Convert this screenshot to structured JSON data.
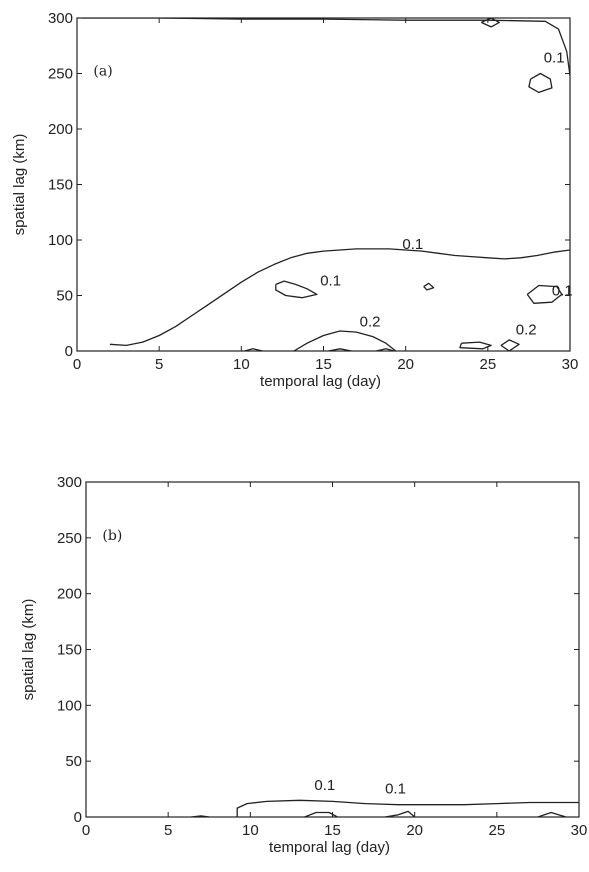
{
  "chart_data": [
    {
      "type": "contour",
      "panel_label": "(a)",
      "xlabel": "temporal lag (day)",
      "ylabel": "spatial lag (km)",
      "xlim": [
        0,
        30
      ],
      "ylim": [
        0,
        300
      ],
      "xticks": [
        0,
        5,
        10,
        15,
        20,
        25,
        30
      ],
      "yticks": [
        0,
        50,
        100,
        150,
        200,
        250,
        300
      ],
      "grid": false,
      "contours": [
        {
          "level": "0.1",
          "points": [
            [
              2,
              6
            ],
            [
              3,
              5
            ],
            [
              4,
              8
            ],
            [
              5,
              14
            ],
            [
              6,
              22
            ],
            [
              7,
              32
            ],
            [
              8,
              42
            ],
            [
              9,
              52
            ],
            [
              10,
              62
            ],
            [
              11,
              71
            ],
            [
              12,
              78
            ],
            [
              13,
              84
            ],
            [
              14,
              88
            ],
            [
              15,
              90
            ],
            [
              16,
              91
            ],
            [
              17,
              92
            ],
            [
              18,
              92
            ],
            [
              19,
              92
            ],
            [
              20,
              91
            ],
            [
              21,
              90
            ],
            [
              22,
              88
            ],
            [
              23,
              86
            ],
            [
              24,
              85
            ],
            [
              25,
              84
            ],
            [
              26,
              83
            ],
            [
              27,
              84
            ],
            [
              28,
              86
            ],
            [
              29,
              89
            ],
            [
              30,
              91
            ]
          ]
        },
        {
          "level": "",
          "points": [
            [
              13.2,
              0
            ],
            [
              14,
              7
            ],
            [
              15,
              14
            ],
            [
              16,
              18
            ],
            [
              17,
              17
            ],
            [
              18,
              13
            ],
            [
              18.8,
              7
            ],
            [
              19.4,
              0
            ]
          ]
        },
        {
          "level": "",
          "points": [
            [
              0.3,
              300
            ],
            [
              5,
              300
            ],
            [
              10,
              299
            ],
            [
              15,
              299
            ],
            [
              20,
              298
            ],
            [
              25,
              298
            ],
            [
              28.5,
              297
            ],
            [
              29.3,
              290
            ],
            [
              29.8,
              270
            ],
            [
              30,
              248
            ]
          ]
        },
        {
          "level": "",
          "points": [
            [
              12.1,
              60
            ],
            [
              12.6,
              63
            ],
            [
              13.3,
              60
            ],
            [
              14,
              56
            ],
            [
              14.6,
              51
            ],
            [
              13.7,
              48
            ],
            [
              12.7,
              50
            ],
            [
              12.1,
              55
            ],
            [
              12.1,
              60
            ]
          ]
        },
        {
          "level": "",
          "points": [
            [
              27.4,
              51
            ],
            [
              28.1,
              59
            ],
            [
              29.2,
              58
            ],
            [
              29.5,
              51
            ],
            [
              28.9,
              44
            ],
            [
              27.8,
              43
            ],
            [
              27.4,
              51
            ]
          ]
        },
        {
          "level": "",
          "points": [
            [
              27.6,
              245
            ],
            [
              28.2,
              250
            ],
            [
              28.8,
              245
            ],
            [
              28.9,
              237
            ],
            [
              28.1,
              233
            ],
            [
              27.5,
              238
            ],
            [
              27.6,
              245
            ]
          ]
        },
        {
          "level": "",
          "points": [
            [
              25.8,
              5
            ],
            [
              26.3,
              10
            ],
            [
              26.9,
              6
            ],
            [
              26.3,
              0
            ],
            [
              25.8,
              5
            ]
          ]
        },
        {
          "level": "",
          "points": [
            [
              23.4,
              7
            ],
            [
              24.5,
              8
            ],
            [
              25.2,
              5
            ],
            [
              24.7,
              2
            ],
            [
              23.3,
              3
            ],
            [
              23.4,
              7
            ]
          ]
        },
        {
          "level": "",
          "points": [
            [
              21.1,
              58
            ],
            [
              21.4,
              61
            ],
            [
              21.7,
              57
            ],
            [
              21.3,
              55
            ],
            [
              21.1,
              58
            ]
          ]
        },
        {
          "level": "",
          "points": [
            [
              24.6,
              296
            ],
            [
              25.2,
              300
            ],
            [
              25.7,
              296
            ],
            [
              25.2,
              292
            ],
            [
              24.6,
              296
            ]
          ]
        },
        {
          "level": "",
          "points": [
            [
              10.2,
              0
            ],
            [
              10.7,
              2
            ],
            [
              11.3,
              0
            ]
          ]
        },
        {
          "level": "",
          "points": [
            [
              15.3,
              0
            ],
            [
              16,
              2
            ],
            [
              16.7,
              0
            ]
          ]
        },
        {
          "level": "",
          "points": [
            [
              18.2,
              0
            ],
            [
              18.8,
              2
            ],
            [
              19.3,
              0
            ]
          ]
        }
      ],
      "annotations": [
        {
          "text": "0.1",
          "x": 28.4,
          "y": 260
        },
        {
          "text": "0.1",
          "x": 19.8,
          "y": 92
        },
        {
          "text": "0.1",
          "x": 14.8,
          "y": 59
        },
        {
          "text": "0.2",
          "x": 17.2,
          "y": 22
        },
        {
          "text": "0.1",
          "x": 28.9,
          "y": 50
        },
        {
          "text": "0.2",
          "x": 26.7,
          "y": 15
        }
      ]
    },
    {
      "type": "contour",
      "panel_label": "(b)",
      "xlabel": "temporal lag (day)",
      "ylabel": "spatial lag (km)",
      "xlim": [
        0,
        30
      ],
      "ylim": [
        0,
        300
      ],
      "xticks": [
        0,
        5,
        10,
        15,
        20,
        25,
        30
      ],
      "yticks": [
        0,
        50,
        100,
        150,
        200,
        250,
        300
      ],
      "grid": false,
      "contours": [
        {
          "level": "0.1",
          "points": [
            [
              9.2,
              0
            ],
            [
              9.2,
              8
            ],
            [
              9.8,
              12
            ],
            [
              11,
              14
            ],
            [
              13,
              15
            ],
            [
              15,
              14
            ],
            [
              17,
              12
            ],
            [
              19,
              11
            ],
            [
              21,
              11
            ],
            [
              23,
              11
            ],
            [
              25,
              12
            ],
            [
              27,
              13
            ],
            [
              29,
              13
            ],
            [
              30,
              13
            ]
          ]
        },
        {
          "level": "",
          "points": [
            [
              13.3,
              0
            ],
            [
              14,
              4
            ],
            [
              14.8,
              4
            ],
            [
              15.3,
              0
            ]
          ]
        },
        {
          "level": "",
          "points": [
            [
              18.2,
              0
            ],
            [
              19,
              2
            ],
            [
              19.6,
              5
            ],
            [
              20,
              0
            ]
          ]
        },
        {
          "level": "",
          "points": [
            [
              6.4,
              0
            ],
            [
              7,
              1
            ],
            [
              7.5,
              0
            ]
          ]
        },
        {
          "level": "",
          "points": [
            [
              27.5,
              0
            ],
            [
              28.3,
              4
            ],
            [
              29.2,
              0
            ]
          ]
        }
      ],
      "annotations": [
        {
          "text": "0.1",
          "x": 13.9,
          "y": 24
        },
        {
          "text": "0.1",
          "x": 18.2,
          "y": 21
        }
      ]
    }
  ]
}
